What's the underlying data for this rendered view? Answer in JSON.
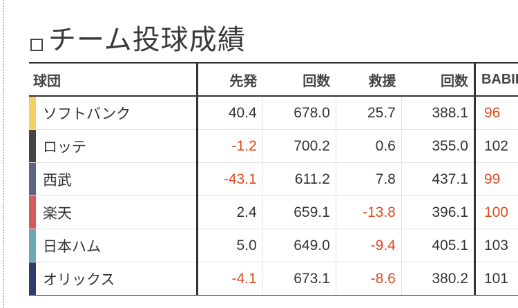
{
  "title": "チーム投球成績",
  "columns": {
    "team": "球団",
    "starter": "先発",
    "starter_innings": "回数",
    "relief": "救援",
    "relief_innings": "回数",
    "babip": "BABIP"
  },
  "rows": [
    {
      "team": "ソフトバンク",
      "color": "#f2d062",
      "starter": "40.4",
      "starter_innings": "678.0",
      "relief": "25.7",
      "relief_innings": "388.1",
      "babip": "96"
    },
    {
      "team": "ロッテ",
      "color": "#444444",
      "starter": "-1.2",
      "starter_innings": "700.2",
      "relief": "0.6",
      "relief_innings": "355.0",
      "babip": "102"
    },
    {
      "team": "西武",
      "color": "#5d6585",
      "starter": "-43.1",
      "starter_innings": "611.2",
      "relief": "7.8",
      "relief_innings": "437.1",
      "babip": "99"
    },
    {
      "team": "楽天",
      "color": "#d65a59",
      "starter": "2.4",
      "starter_innings": "659.1",
      "relief": "-13.8",
      "relief_innings": "396.1",
      "babip": "100"
    },
    {
      "team": "日本ハム",
      "color": "#6aa8b3",
      "starter": "5.0",
      "starter_innings": "649.0",
      "relief": "-9.4",
      "relief_innings": "405.1",
      "babip": "103"
    },
    {
      "team": "オリックス",
      "color": "#2f3d6e",
      "starter": "-4.1",
      "starter_innings": "673.1",
      "relief": "-8.6",
      "relief_innings": "380.2",
      "babip": "101"
    }
  ],
  "babip_highlight": [
    "96",
    "99",
    "100"
  ],
  "colors": {
    "negative": "#e04a1e",
    "text": "#333333",
    "rule": "#333333"
  }
}
